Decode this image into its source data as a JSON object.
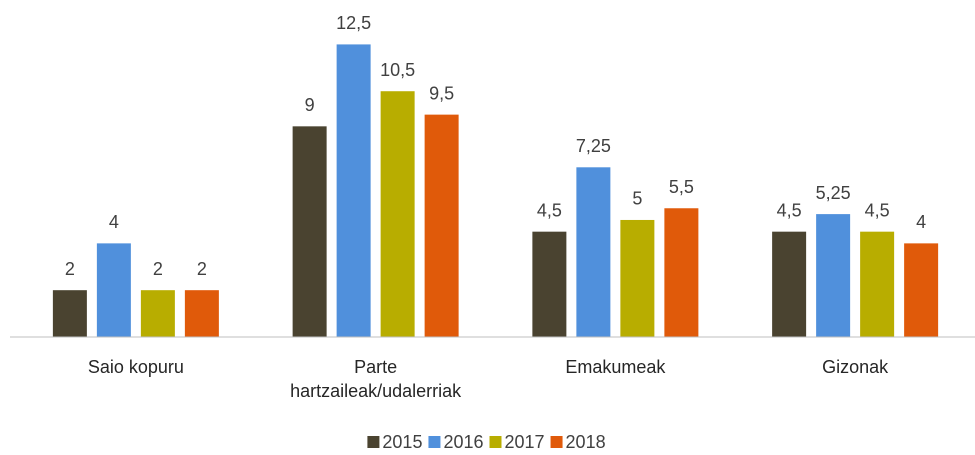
{
  "chart_data": {
    "type": "bar",
    "categories": [
      "Saio kopuru",
      "Parte hartzaileak/udalerriak",
      "Emakumeak",
      "Gizonak"
    ],
    "series": [
      {
        "name": "2015",
        "color": "#4a4330",
        "values": [
          2,
          9,
          4.5,
          4.5
        ],
        "value_labels": [
          "2",
          "9",
          "4,5",
          "4,5"
        ]
      },
      {
        "name": "2016",
        "color": "#5090dc",
        "values": [
          4,
          12.5,
          7.25,
          5.25
        ],
        "value_labels": [
          "4",
          "12,5",
          "7,25",
          "5,25"
        ]
      },
      {
        "name": "2017",
        "color": "#b8ad00",
        "values": [
          2,
          10.5,
          5,
          4.5
        ],
        "value_labels": [
          "2",
          "10,5",
          "5",
          "4,5"
        ]
      },
      {
        "name": "2018",
        "color": "#e05a0a",
        "values": [
          2,
          9.5,
          5.5,
          4
        ],
        "value_labels": [
          "2",
          "9,5",
          "5,5",
          "4"
        ]
      }
    ],
    "ylim": [
      0,
      13.5
    ],
    "legend": "bottom"
  }
}
